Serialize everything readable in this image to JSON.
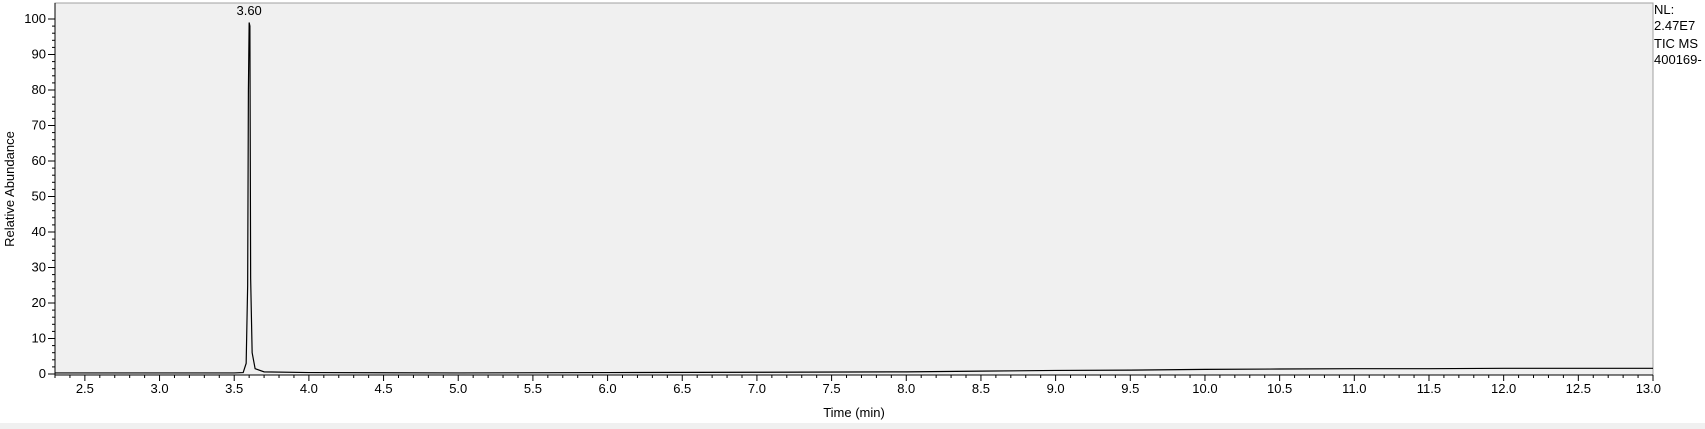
{
  "chart_data": {
    "type": "line",
    "title": "",
    "xlabel": "Time (min)",
    "ylabel": "Relative Abundance",
    "xlim": [
      2.3,
      13.0
    ],
    "ylim": [
      0,
      100
    ],
    "x_ticks": [
      2.5,
      3.0,
      3.5,
      4.0,
      4.5,
      5.0,
      5.5,
      6.0,
      6.5,
      7.0,
      7.5,
      8.0,
      8.5,
      9.0,
      9.5,
      10.0,
      10.5,
      11.0,
      11.5,
      12.0,
      12.5,
      13.0
    ],
    "x_tick_labels": [
      "2.5",
      "3.0",
      "3.5",
      "4.0",
      "4.5",
      "5.0",
      "5.5",
      "6.0",
      "6.5",
      "7.0",
      "7.5",
      "8.0",
      "8.5",
      "9.0",
      "9.5",
      "10.0",
      "10.5",
      "11.0",
      "11.5",
      "12.0",
      "12.5",
      "13.0"
    ],
    "y_ticks": [
      0,
      10,
      20,
      30,
      40,
      50,
      60,
      70,
      80,
      90,
      100
    ],
    "y_tick_labels": [
      "0",
      "10",
      "20",
      "30",
      "40",
      "50",
      "60",
      "70",
      "80",
      "90",
      "100"
    ],
    "grid": false,
    "colors": {
      "plot_bg": "#f0f0f0",
      "line": "#000000"
    },
    "series": [
      {
        "x": [
          2.3,
          3.0,
          3.5,
          3.56,
          3.58,
          3.59,
          3.595,
          3.6,
          3.605,
          3.61,
          3.62,
          3.64,
          3.7,
          4.0,
          5.0,
          6.0,
          7.0,
          8.0,
          8.5,
          9.0,
          9.5,
          10.0,
          10.5,
          11.0,
          11.5,
          12.0,
          12.5,
          13.0
        ],
        "values": [
          0.3,
          0.3,
          0.3,
          0.4,
          3,
          25,
          80,
          99,
          98,
          27,
          6,
          1.5,
          0.6,
          0.4,
          0.3,
          0.4,
          0.5,
          0.6,
          0.8,
          1.0,
          1.1,
          1.3,
          1.4,
          1.5,
          1.5,
          1.6,
          1.6,
          1.6
        ]
      }
    ],
    "annotations": [
      {
        "x": 3.6,
        "y": 100,
        "text": "3.60"
      }
    ]
  },
  "side_notes": [
    "NL:",
    "2.47E7",
    "TIC  MS",
    "400169-"
  ]
}
